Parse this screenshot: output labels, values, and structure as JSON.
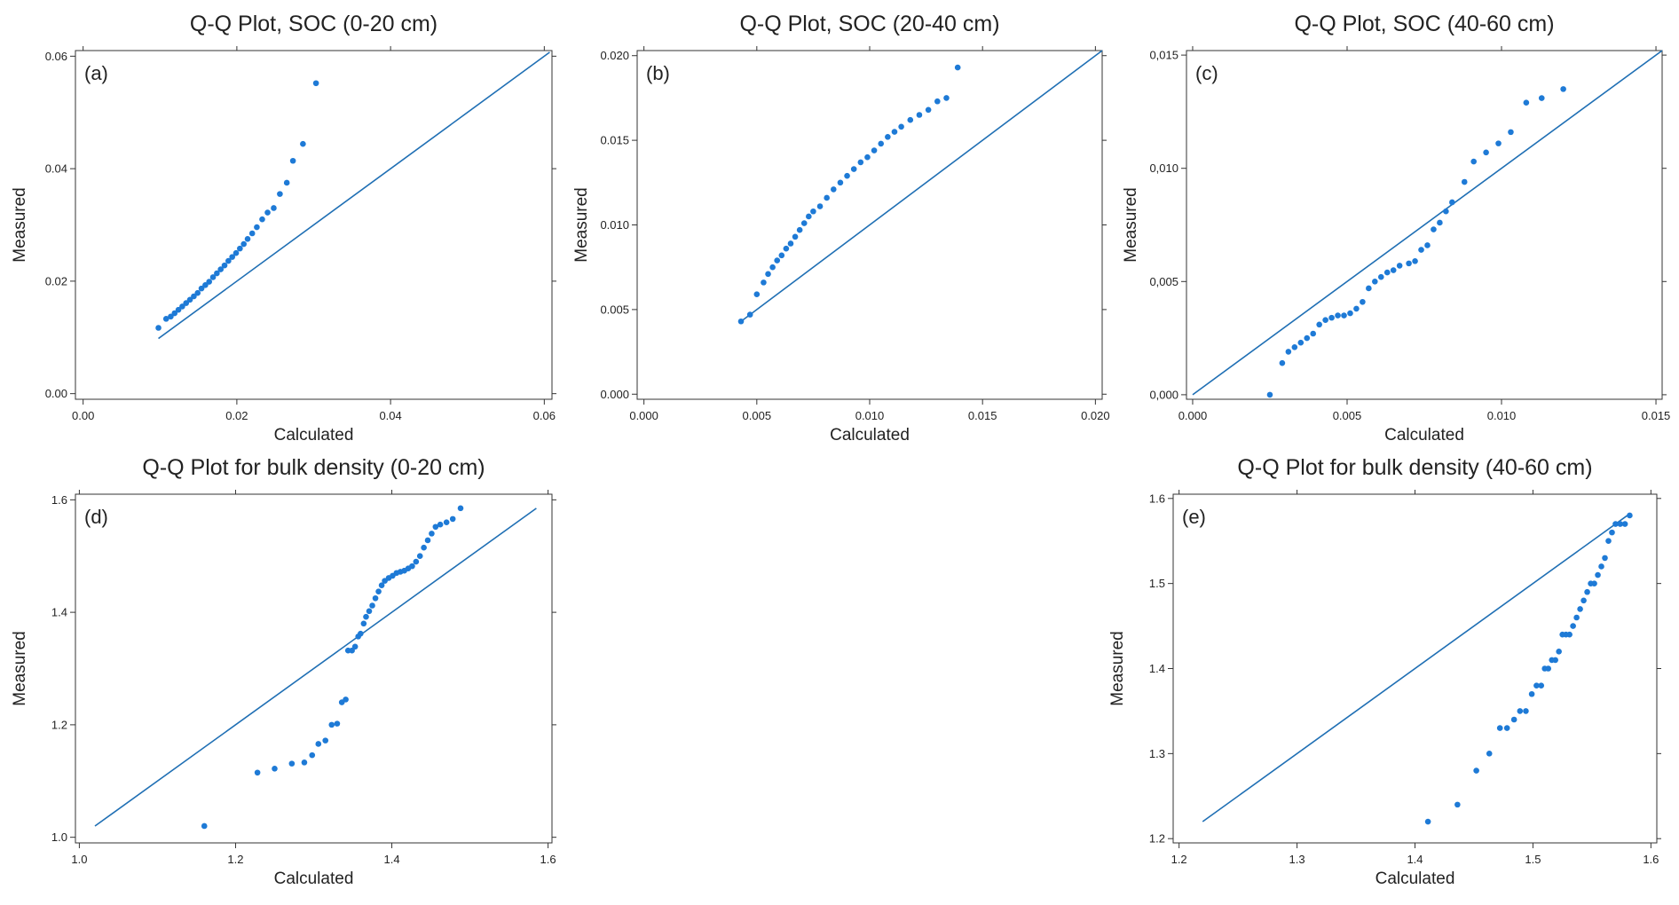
{
  "colors": {
    "point": "#1e7ad6",
    "line": "#1f6fb4",
    "axis": "#333333"
  },
  "chart_data": [
    {
      "type": "scatter",
      "panel_label": "(a)",
      "title": "Q-Q Plot, SOC (0-20 cm)",
      "xlabel": "Calculated",
      "ylabel": "Measured",
      "xlim": [
        -0.001,
        0.061
      ],
      "ylim": [
        -0.001,
        0.061
      ],
      "xticks": [
        0.0,
        0.02,
        0.04,
        0.06
      ],
      "xtick_labels": [
        "0.00",
        "0.02",
        "0.04",
        "0.06"
      ],
      "yticks": [
        0.0,
        0.02,
        0.04,
        0.06
      ],
      "ytick_labels": [
        "0.00",
        "0.02",
        "0.04",
        "0.06"
      ],
      "reference_line": [
        [
          0.0098,
          0.0098
        ],
        [
          0.0607,
          0.0607
        ]
      ],
      "points": [
        [
          0.0098,
          0.0117
        ],
        [
          0.0108,
          0.0133
        ],
        [
          0.0114,
          0.0137
        ],
        [
          0.0119,
          0.0143
        ],
        [
          0.0124,
          0.0149
        ],
        [
          0.0129,
          0.0155
        ],
        [
          0.0134,
          0.0161
        ],
        [
          0.0139,
          0.0167
        ],
        [
          0.0144,
          0.0173
        ],
        [
          0.0149,
          0.0179
        ],
        [
          0.0154,
          0.0187
        ],
        [
          0.0159,
          0.0193
        ],
        [
          0.0164,
          0.0199
        ],
        [
          0.0169,
          0.0207
        ],
        [
          0.0174,
          0.0214
        ],
        [
          0.0179,
          0.0221
        ],
        [
          0.0184,
          0.0228
        ],
        [
          0.0189,
          0.0236
        ],
        [
          0.0194,
          0.0243
        ],
        [
          0.0199,
          0.025
        ],
        [
          0.0204,
          0.0258
        ],
        [
          0.0209,
          0.0266
        ],
        [
          0.0214,
          0.0275
        ],
        [
          0.022,
          0.0285
        ],
        [
          0.0226,
          0.0296
        ],
        [
          0.0233,
          0.031
        ],
        [
          0.024,
          0.0322
        ],
        [
          0.0248,
          0.033
        ],
        [
          0.0256,
          0.0355
        ],
        [
          0.0265,
          0.0375
        ],
        [
          0.0273,
          0.0414
        ],
        [
          0.0286,
          0.0444
        ],
        [
          0.0303,
          0.0552
        ]
      ]
    },
    {
      "type": "scatter",
      "panel_label": "(b)",
      "title": "Q-Q Plot, SOC (20-40 cm)",
      "xlabel": "Calculated",
      "ylabel": "Measured",
      "xlim": [
        -0.0003,
        0.0203
      ],
      "ylim": [
        -0.0003,
        0.0203
      ],
      "xticks": [
        0.0,
        0.005,
        0.01,
        0.015,
        0.02
      ],
      "xtick_labels": [
        "0.000",
        "0.005",
        "0.010",
        "0.015",
        "0.020"
      ],
      "yticks": [
        0.0,
        0.005,
        0.01,
        0.015,
        0.02
      ],
      "ytick_labels": [
        "0.000",
        "0.005",
        "0.010",
        "0.015",
        "0.020"
      ],
      "reference_line": [
        [
          0.0043,
          0.0043
        ],
        [
          0.0203,
          0.0203
        ]
      ],
      "points": [
        [
          0.0043,
          0.0043
        ],
        [
          0.0047,
          0.0047
        ],
        [
          0.005,
          0.0059
        ],
        [
          0.0053,
          0.0066
        ],
        [
          0.0055,
          0.0071
        ],
        [
          0.0057,
          0.0075
        ],
        [
          0.0059,
          0.0079
        ],
        [
          0.0061,
          0.0082
        ],
        [
          0.0063,
          0.0086
        ],
        [
          0.0065,
          0.0089
        ],
        [
          0.0067,
          0.0093
        ],
        [
          0.0069,
          0.0097
        ],
        [
          0.0071,
          0.0101
        ],
        [
          0.0073,
          0.0105
        ],
        [
          0.0075,
          0.0108
        ],
        [
          0.0078,
          0.0111
        ],
        [
          0.0081,
          0.0116
        ],
        [
          0.0084,
          0.0121
        ],
        [
          0.0087,
          0.0125
        ],
        [
          0.009,
          0.0129
        ],
        [
          0.0093,
          0.0133
        ],
        [
          0.0096,
          0.0137
        ],
        [
          0.0099,
          0.014
        ],
        [
          0.0102,
          0.0144
        ],
        [
          0.0105,
          0.0148
        ],
        [
          0.0108,
          0.0152
        ],
        [
          0.0111,
          0.0155
        ],
        [
          0.0114,
          0.0158
        ],
        [
          0.0118,
          0.0162
        ],
        [
          0.0122,
          0.0165
        ],
        [
          0.0126,
          0.0168
        ],
        [
          0.013,
          0.0173
        ],
        [
          0.0134,
          0.0175
        ],
        [
          0.0139,
          0.0193
        ]
      ]
    },
    {
      "type": "scatter",
      "panel_label": "(c)",
      "title": "Q-Q Plot, SOC (40-60 cm)",
      "xlabel": "Calculated",
      "ylabel": "Measured",
      "xlim": [
        -0.0002,
        0.0152
      ],
      "ylim": [
        -0.0002,
        0.0152
      ],
      "xticks": [
        0.0,
        0.005,
        0.01,
        0.015
      ],
      "xtick_labels": [
        "0.000",
        "0.005",
        "0.010",
        "0.015"
      ],
      "yticks": [
        0.0,
        0.005,
        0.01,
        0.015
      ],
      "ytick_labels": [
        "0,000",
        "0,005",
        "0,010",
        "0,015"
      ],
      "reference_line": [
        [
          0.0,
          0.0
        ],
        [
          0.0152,
          0.0152
        ]
      ],
      "points": [
        [
          0.0025,
          0.0
        ],
        [
          0.0029,
          0.0014
        ],
        [
          0.0031,
          0.0019
        ],
        [
          0.0033,
          0.0021
        ],
        [
          0.0035,
          0.0023
        ],
        [
          0.0037,
          0.0025
        ],
        [
          0.0039,
          0.0027
        ],
        [
          0.0041,
          0.0031
        ],
        [
          0.0043,
          0.0033
        ],
        [
          0.0045,
          0.0034
        ],
        [
          0.0047,
          0.0035
        ],
        [
          0.0049,
          0.0035
        ],
        [
          0.0051,
          0.0036
        ],
        [
          0.0053,
          0.0038
        ],
        [
          0.0055,
          0.0041
        ],
        [
          0.0057,
          0.0047
        ],
        [
          0.0059,
          0.005
        ],
        [
          0.0061,
          0.0052
        ],
        [
          0.0063,
          0.0054
        ],
        [
          0.0065,
          0.0055
        ],
        [
          0.0067,
          0.0057
        ],
        [
          0.007,
          0.0058
        ],
        [
          0.0072,
          0.0059
        ],
        [
          0.0074,
          0.0064
        ],
        [
          0.0076,
          0.0066
        ],
        [
          0.0078,
          0.0073
        ],
        [
          0.008,
          0.0076
        ],
        [
          0.0082,
          0.0081
        ],
        [
          0.0084,
          0.0085
        ],
        [
          0.0088,
          0.0094
        ],
        [
          0.0091,
          0.0103
        ],
        [
          0.0095,
          0.0107
        ],
        [
          0.0099,
          0.0111
        ],
        [
          0.0103,
          0.0116
        ],
        [
          0.0108,
          0.0129
        ],
        [
          0.0113,
          0.0131
        ],
        [
          0.012,
          0.0135
        ]
      ]
    },
    {
      "type": "scatter",
      "panel_label": "(d)",
      "title": "Q-Q Plot for bulk density (0-20 cm)",
      "xlabel": "Calculated",
      "ylabel": "Measured",
      "xlim": [
        0.995,
        1.605
      ],
      "ylim": [
        0.99,
        1.61
      ],
      "xticks": [
        1.0,
        1.2,
        1.4,
        1.6
      ],
      "xtick_labels": [
        "1.0",
        "1.2",
        "1.4",
        "1.6"
      ],
      "yticks": [
        1.0,
        1.2,
        1.4,
        1.6
      ],
      "ytick_labels": [
        "1.0",
        "1.2",
        "1.4",
        "1.6"
      ],
      "reference_line": [
        [
          1.02,
          1.02
        ],
        [
          1.585,
          1.585
        ]
      ],
      "points": [
        [
          1.16,
          1.02
        ],
        [
          1.228,
          1.115
        ],
        [
          1.25,
          1.122
        ],
        [
          1.272,
          1.131
        ],
        [
          1.288,
          1.133
        ],
        [
          1.298,
          1.146
        ],
        [
          1.306,
          1.166
        ],
        [
          1.315,
          1.172
        ],
        [
          1.323,
          1.2
        ],
        [
          1.33,
          1.202
        ],
        [
          1.336,
          1.24
        ],
        [
          1.341,
          1.245
        ],
        [
          1.344,
          1.332
        ],
        [
          1.349,
          1.332
        ],
        [
          1.353,
          1.339
        ],
        [
          1.357,
          1.357
        ],
        [
          1.36,
          1.362
        ],
        [
          1.364,
          1.38
        ],
        [
          1.367,
          1.392
        ],
        [
          1.371,
          1.402
        ],
        [
          1.375,
          1.412
        ],
        [
          1.379,
          1.425
        ],
        [
          1.383,
          1.437
        ],
        [
          1.387,
          1.448
        ],
        [
          1.391,
          1.456
        ],
        [
          1.396,
          1.461
        ],
        [
          1.401,
          1.465
        ],
        [
          1.406,
          1.47
        ],
        [
          1.411,
          1.472
        ],
        [
          1.416,
          1.474
        ],
        [
          1.421,
          1.478
        ],
        [
          1.426,
          1.482
        ],
        [
          1.431,
          1.49
        ],
        [
          1.436,
          1.5
        ],
        [
          1.441,
          1.515
        ],
        [
          1.446,
          1.528
        ],
        [
          1.451,
          1.54
        ],
        [
          1.456,
          1.552
        ],
        [
          1.462,
          1.556
        ],
        [
          1.47,
          1.56
        ],
        [
          1.478,
          1.566
        ],
        [
          1.488,
          1.585
        ]
      ]
    },
    {
      "type": "scatter",
      "panel_label": "(e)",
      "title": "Q-Q Plot for bulk density (40-60 cm)",
      "xlabel": "Calculated",
      "ylabel": "Measured",
      "xlim": [
        1.195,
        1.605
      ],
      "ylim": [
        1.195,
        1.605
      ],
      "xticks": [
        1.2,
        1.3,
        1.4,
        1.5,
        1.6
      ],
      "xtick_labels": [
        "1.2",
        "1.3",
        "1.4",
        "1.5",
        "1.6"
      ],
      "yticks": [
        1.2,
        1.3,
        1.4,
        1.5,
        1.6
      ],
      "ytick_labels": [
        "1.2",
        "1.3",
        "1.4",
        "1.5",
        "1.6"
      ],
      "reference_line": [
        [
          1.22,
          1.22
        ],
        [
          1.582,
          1.582
        ]
      ],
      "points": [
        [
          1.411,
          1.22
        ],
        [
          1.436,
          1.24
        ],
        [
          1.452,
          1.28
        ],
        [
          1.463,
          1.3
        ],
        [
          1.472,
          1.33
        ],
        [
          1.478,
          1.33
        ],
        [
          1.484,
          1.34
        ],
        [
          1.489,
          1.35
        ],
        [
          1.494,
          1.35
        ],
        [
          1.499,
          1.37
        ],
        [
          1.503,
          1.38
        ],
        [
          1.507,
          1.38
        ],
        [
          1.51,
          1.4
        ],
        [
          1.513,
          1.4
        ],
        [
          1.516,
          1.41
        ],
        [
          1.519,
          1.41
        ],
        [
          1.522,
          1.42
        ],
        [
          1.525,
          1.44
        ],
        [
          1.528,
          1.44
        ],
        [
          1.531,
          1.44
        ],
        [
          1.534,
          1.45
        ],
        [
          1.537,
          1.46
        ],
        [
          1.54,
          1.47
        ],
        [
          1.543,
          1.48
        ],
        [
          1.546,
          1.49
        ],
        [
          1.549,
          1.5
        ],
        [
          1.552,
          1.5
        ],
        [
          1.555,
          1.51
        ],
        [
          1.558,
          1.52
        ],
        [
          1.561,
          1.53
        ],
        [
          1.564,
          1.55
        ],
        [
          1.567,
          1.56
        ],
        [
          1.57,
          1.57
        ],
        [
          1.574,
          1.57
        ],
        [
          1.578,
          1.57
        ],
        [
          1.582,
          1.58
        ]
      ]
    }
  ]
}
